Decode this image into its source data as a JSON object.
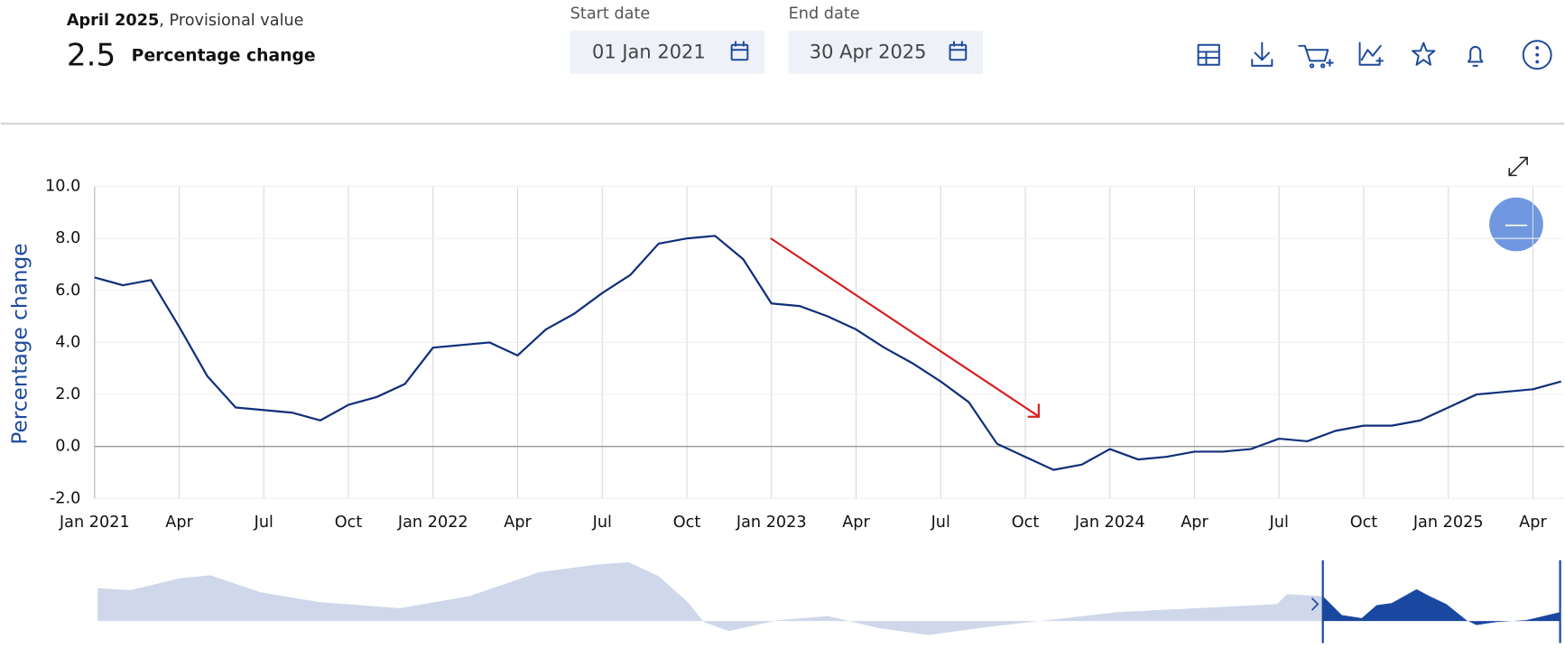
{
  "header": {
    "period": "April 2025",
    "status": ", Provisional value",
    "value": "2.5",
    "measure": "Percentage change"
  },
  "filters": {
    "start_label": "Start date",
    "start_value": "01 Jan 2021",
    "end_label": "End date",
    "end_value": "30 Apr 2025"
  },
  "chart_data": {
    "type": "line",
    "y_label": "Percentage change",
    "categories": [
      "Jan 2021",
      null,
      null,
      "Apr",
      null,
      null,
      "Jul",
      null,
      null,
      "Oct",
      null,
      null,
      "Jan 2022",
      null,
      null,
      "Apr",
      null,
      null,
      "Jul",
      null,
      null,
      "Oct",
      null,
      null,
      "Jan 2023",
      null,
      null,
      "Apr",
      null,
      null,
      "Jul",
      null,
      null,
      "Oct",
      null,
      null,
      "Jan 2024",
      null,
      null,
      "Apr",
      null,
      null,
      "Jul",
      null,
      null,
      "Oct",
      null,
      null,
      "Jan 2025",
      null,
      null,
      "Apr",
      null
    ],
    "values": [
      6.5,
      6.2,
      6.4,
      4.6,
      2.7,
      1.5,
      1.4,
      1.3,
      1.0,
      1.6,
      1.9,
      2.4,
      3.8,
      3.9,
      4.0,
      3.5,
      4.5,
      5.1,
      5.9,
      6.6,
      7.8,
      8.0,
      8.1,
      7.2,
      5.5,
      5.4,
      5.0,
      4.5,
      3.8,
      3.2,
      2.5,
      1.7,
      0.1,
      -0.4,
      -0.9,
      -0.7,
      -0.1,
      -0.5,
      -0.4,
      -0.2,
      -0.2,
      -0.1,
      0.3,
      0.2,
      0.6,
      0.8,
      0.8,
      1.0,
      1.5,
      2.0,
      2.1,
      2.2,
      2.5
    ],
    "color": "#0f2f7a",
    "ylim": [
      -2,
      10
    ],
    "yticks": [
      {
        "value": -2,
        "label": "-2.0"
      },
      {
        "value": 0,
        "label": "0.0"
      },
      {
        "value": 2,
        "label": "2.0"
      },
      {
        "value": 4,
        "label": "4.0"
      },
      {
        "value": 6,
        "label": "6.0"
      },
      {
        "value": 8,
        "label": "8.0"
      },
      {
        "value": 10,
        "label": "10.0"
      }
    ],
    "grid": true
  }
}
